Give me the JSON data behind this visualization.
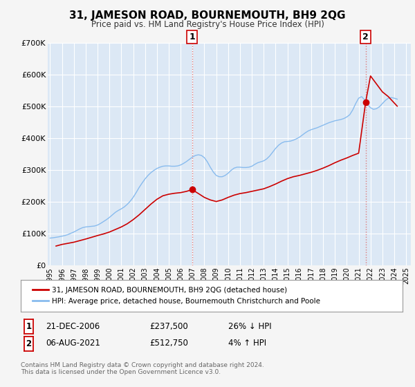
{
  "title": "31, JAMESON ROAD, BOURNEMOUTH, BH9 2QG",
  "subtitle": "Price paid vs. HM Land Registry's House Price Index (HPI)",
  "background_color": "#f5f5f5",
  "plot_bg_color": "#dce8f5",
  "grid_color": "#ffffff",
  "ylim": [
    0,
    700000
  ],
  "yticks": [
    0,
    100000,
    200000,
    300000,
    400000,
    500000,
    600000,
    700000
  ],
  "ytick_labels": [
    "£0",
    "£100K",
    "£200K",
    "£300K",
    "£400K",
    "£500K",
    "£600K",
    "£700K"
  ],
  "xlim_start": 1994.8,
  "xlim_end": 2025.4,
  "marker1_x": 2006.97,
  "marker1_y": 237500,
  "marker2_x": 2021.59,
  "marker2_y": 512750,
  "vline1_x": 2006.97,
  "vline2_x": 2021.59,
  "sale_color": "#cc0000",
  "hpi_color": "#88bbee",
  "marker_color": "#cc0000",
  "legend_label_sale": "31, JAMESON ROAD, BOURNEMOUTH, BH9 2QG (detached house)",
  "legend_label_hpi": "HPI: Average price, detached house, Bournemouth Christchurch and Poole",
  "footer1": "Contains HM Land Registry data © Crown copyright and database right 2024.",
  "footer2": "This data is licensed under the Open Government Licence v3.0.",
  "table_row1": [
    "1",
    "21-DEC-2006",
    "£237,500",
    "26% ↓ HPI"
  ],
  "table_row2": [
    "2",
    "06-AUG-2021",
    "£512,750",
    "4% ↑ HPI"
  ],
  "hpi_years": [
    1995,
    1995.25,
    1995.5,
    1995.75,
    1996,
    1996.25,
    1996.5,
    1996.75,
    1997,
    1997.25,
    1997.5,
    1997.75,
    1998,
    1998.25,
    1998.5,
    1998.75,
    1999,
    1999.25,
    1999.5,
    1999.75,
    2000,
    2000.25,
    2000.5,
    2000.75,
    2001,
    2001.25,
    2001.5,
    2001.75,
    2002,
    2002.25,
    2002.5,
    2002.75,
    2003,
    2003.25,
    2003.5,
    2003.75,
    2004,
    2004.25,
    2004.5,
    2004.75,
    2005,
    2005.25,
    2005.5,
    2005.75,
    2006,
    2006.25,
    2006.5,
    2006.75,
    2007,
    2007.25,
    2007.5,
    2007.75,
    2008,
    2008.25,
    2008.5,
    2008.75,
    2009,
    2009.25,
    2009.5,
    2009.75,
    2010,
    2010.25,
    2010.5,
    2010.75,
    2011,
    2011.25,
    2011.5,
    2011.75,
    2012,
    2012.25,
    2012.5,
    2012.75,
    2013,
    2013.25,
    2013.5,
    2013.75,
    2014,
    2014.25,
    2014.5,
    2014.75,
    2015,
    2015.25,
    2015.5,
    2015.75,
    2016,
    2016.25,
    2016.5,
    2016.75,
    2017,
    2017.25,
    2017.5,
    2017.75,
    2018,
    2018.25,
    2018.5,
    2018.75,
    2019,
    2019.25,
    2019.5,
    2019.75,
    2020,
    2020.25,
    2020.5,
    2020.75,
    2021,
    2021.25,
    2021.5,
    2021.75,
    2022,
    2022.25,
    2022.5,
    2022.75,
    2023,
    2023.25,
    2023.5,
    2023.75,
    2024,
    2024.25
  ],
  "hpi_values": [
    85000,
    86000,
    87500,
    89000,
    91000,
    93000,
    96000,
    100000,
    104000,
    109000,
    114000,
    118000,
    120000,
    121000,
    122000,
    123000,
    126000,
    131000,
    137000,
    143000,
    150000,
    158000,
    166000,
    172000,
    177000,
    183000,
    191000,
    201000,
    213000,
    228000,
    244000,
    258000,
    271000,
    282000,
    291000,
    298000,
    304000,
    308000,
    311000,
    312000,
    312000,
    311000,
    311000,
    312000,
    315000,
    320000,
    326000,
    333000,
    340000,
    345000,
    347000,
    345000,
    338000,
    325000,
    308000,
    293000,
    282000,
    278000,
    278000,
    282000,
    289000,
    298000,
    305000,
    308000,
    308000,
    307000,
    307000,
    308000,
    311000,
    317000,
    322000,
    325000,
    328000,
    334000,
    343000,
    355000,
    367000,
    377000,
    384000,
    388000,
    389000,
    390000,
    393000,
    397000,
    402000,
    409000,
    416000,
    422000,
    426000,
    429000,
    432000,
    436000,
    440000,
    444000,
    448000,
    451000,
    454000,
    456000,
    458000,
    461000,
    466000,
    473000,
    488000,
    508000,
    525000,
    530000,
    520000,
    505000,
    495000,
    490000,
    492000,
    498000,
    508000,
    518000,
    525000,
    527000,
    525000,
    522000
  ],
  "sale_years": [
    1995.5,
    1996.0,
    1997.0,
    1998.0,
    1999.0,
    1999.5,
    2000.0,
    2000.5,
    2001.0,
    2001.5,
    2002.0,
    2002.5,
    2003.0,
    2003.5,
    2004.0,
    2004.5,
    2005.0,
    2005.5,
    2006.0,
    2006.5,
    2006.97,
    2007.5,
    2008.0,
    2008.5,
    2009.0,
    2009.5,
    2010.0,
    2010.5,
    2011.0,
    2011.5,
    2012.0,
    2012.5,
    2013.0,
    2013.5,
    2014.0,
    2014.5,
    2015.0,
    2015.5,
    2016.0,
    2016.5,
    2017.0,
    2017.5,
    2018.0,
    2018.5,
    2019.0,
    2019.5,
    2020.0,
    2020.5,
    2021.0,
    2021.59,
    2022.0,
    2022.5,
    2023.0,
    2023.5,
    2024.0,
    2024.25
  ],
  "sale_values": [
    60000,
    65000,
    72000,
    82000,
    93000,
    98000,
    104000,
    112000,
    120000,
    130000,
    143000,
    158000,
    175000,
    192000,
    207000,
    218000,
    223000,
    226000,
    228000,
    232000,
    237500,
    225000,
    213000,
    205000,
    200000,
    205000,
    213000,
    220000,
    225000,
    228000,
    232000,
    236000,
    240000,
    247000,
    255000,
    264000,
    272000,
    278000,
    282000,
    287000,
    292000,
    298000,
    305000,
    313000,
    322000,
    330000,
    337000,
    345000,
    352000,
    512750,
    595000,
    570000,
    545000,
    530000,
    510000,
    500000
  ]
}
